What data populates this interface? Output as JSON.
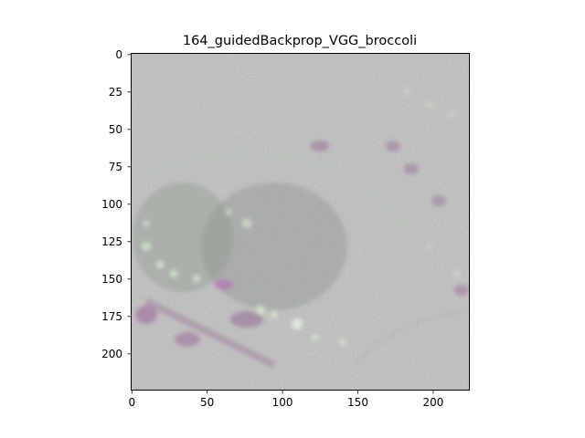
{
  "figure": {
    "title": "164_guidedBackprop_VGG_broccoli"
  },
  "axes": {
    "x_ticks": [
      "0",
      "50",
      "100",
      "150",
      "200"
    ],
    "y_ticks": [
      "0",
      "25",
      "50",
      "75",
      "100",
      "125",
      "150",
      "175",
      "200"
    ],
    "x_range": [
      0,
      224
    ],
    "y_range": [
      224,
      0
    ]
  },
  "image": {
    "description_colors": {
      "background": "#8f9190",
      "frame": "#000000"
    },
    "icon": "guided-backprop-saliency-map"
  }
}
